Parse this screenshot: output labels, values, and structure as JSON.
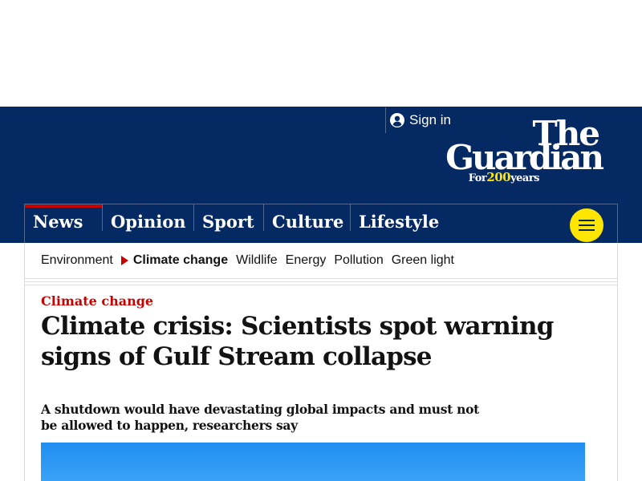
{
  "header": {
    "sign_in_label": "Sign in",
    "logo": {
      "line1": "The",
      "line2": "Guardian",
      "tagline_pre": "For",
      "tagline_num": "200",
      "tagline_post": "years"
    },
    "pillars": [
      {
        "label": "News"
      },
      {
        "label": "Opinion"
      },
      {
        "label": "Sport"
      },
      {
        "label": "Culture"
      },
      {
        "label": "Lifestyle"
      }
    ],
    "menu_icon": "hamburger-icon"
  },
  "subnav": {
    "items": [
      "Environment",
      "Climate change",
      "Wildlife",
      "Energy",
      "Pollution",
      "Green light"
    ],
    "current": "Climate change"
  },
  "article": {
    "kicker": "Climate change",
    "headline": "Climate crisis: Scientists spot warning signs of Gulf Stream collapse",
    "standfirst": "A shutdown would have devastating global impacts and must not be allowed to happen, researchers say"
  },
  "colors": {
    "brand_blue": "#052962",
    "news_red": "#c70000",
    "menu_yellow": "#ffe500"
  }
}
